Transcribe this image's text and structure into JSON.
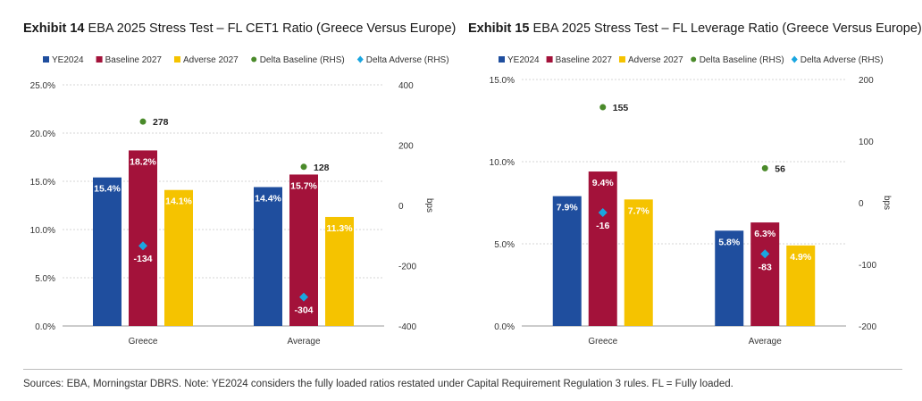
{
  "colors": {
    "ye2024": "#1f4e9e",
    "baseline": "#a3123a",
    "adverse": "#f5c300",
    "delta_baseline": "#4a8a2a",
    "delta_adverse": "#1aa6e0",
    "grid": "#d0d0d0"
  },
  "exhibit14": {
    "label": "Exhibit 14",
    "title": "EBA 2025 Stress Test – FL CET1 Ratio (Greece Versus Europe)"
  },
  "exhibit15": {
    "label": "Exhibit 15",
    "title": "EBA 2025 Stress Test – FL Leverage Ratio (Greece Versus Europe)"
  },
  "footnote": "Sources: EBA, Morningstar DBRS. Note: YE2024 considers the fully loaded ratios restated under Capital Requirement Regulation 3 rules. FL = Fully loaded.",
  "chart_data": [
    {
      "type": "bar",
      "categories": [
        "Greece",
        "Average"
      ],
      "series": [
        {
          "name": "YE2024",
          "values": [
            15.4,
            14.4
          ],
          "labels": [
            "15.4%",
            "14.4%"
          ],
          "color": "#1f4e9e"
        },
        {
          "name": "Baseline 2027",
          "values": [
            18.2,
            15.7
          ],
          "labels": [
            "18.2%",
            "15.7%"
          ],
          "color": "#a3123a"
        },
        {
          "name": "Adverse 2027",
          "values": [
            14.1,
            11.3
          ],
          "labels": [
            "14.1%",
            "11.3%"
          ],
          "color": "#f5c300"
        }
      ],
      "overlay_series": [
        {
          "name": "Delta Baseline (RHS)",
          "values": [
            278,
            128
          ],
          "marker": "circle",
          "color": "#4a8a2a"
        },
        {
          "name": "Delta Adverse (RHS)",
          "values": [
            -134,
            -304
          ],
          "marker": "diamond",
          "color": "#1aa6e0"
        }
      ],
      "ylim": [
        0,
        25
      ],
      "yticks": [
        "0.0%",
        "5.0%",
        "10.0%",
        "15.0%",
        "20.0%",
        "25.0%"
      ],
      "y2lim": [
        -400,
        400
      ],
      "y2ticks": [
        "-400",
        "-200",
        "0",
        "200",
        "400"
      ],
      "y2label": "bps",
      "grid": true,
      "legend": "top"
    },
    {
      "type": "bar",
      "categories": [
        "Greece",
        "Average"
      ],
      "series": [
        {
          "name": "YE2024",
          "values": [
            7.9,
            5.8
          ],
          "labels": [
            "7.9%",
            "5.8%"
          ],
          "color": "#1f4e9e"
        },
        {
          "name": "Baseline 2027",
          "values": [
            9.4,
            6.3
          ],
          "labels": [
            "9.4%",
            "6.3%"
          ],
          "color": "#a3123a"
        },
        {
          "name": "Adverse 2027",
          "values": [
            7.7,
            4.9
          ],
          "labels": [
            "7.7%",
            "4.9%"
          ],
          "color": "#f5c300"
        }
      ],
      "overlay_series": [
        {
          "name": "Delta Baseline (RHS)",
          "values": [
            155,
            56
          ],
          "marker": "circle",
          "color": "#4a8a2a"
        },
        {
          "name": "Delta Adverse (RHS)",
          "values": [
            -16,
            -83
          ],
          "marker": "diamond",
          "color": "#1aa6e0"
        }
      ],
      "ylim": [
        0,
        15
      ],
      "yticks": [
        "0.0%",
        "5.0%",
        "10.0%",
        "15.0%"
      ],
      "y2lim": [
        -200,
        200
      ],
      "y2ticks": [
        "-200",
        "-100",
        "0",
        "100",
        "200"
      ],
      "y2label": "bps",
      "grid": true,
      "legend": "top"
    }
  ]
}
